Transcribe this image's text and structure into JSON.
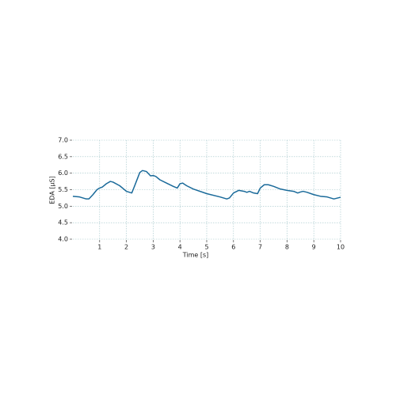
{
  "chart_data": {
    "type": "line",
    "xlabel": "Time [s]",
    "ylabel": "EDA [μS]",
    "x": [
      0,
      0.25,
      0.5,
      0.6,
      0.75,
      0.9,
      1.0,
      1.1,
      1.25,
      1.4,
      1.5,
      1.75,
      2.0,
      2.2,
      2.3,
      2.5,
      2.6,
      2.75,
      2.9,
      3.0,
      3.1,
      3.25,
      3.5,
      3.75,
      3.9,
      4.0,
      4.1,
      4.25,
      4.5,
      5.0,
      5.5,
      5.75,
      5.85,
      6.0,
      6.2,
      6.4,
      6.5,
      6.6,
      6.75,
      6.9,
      7.0,
      7.15,
      7.3,
      7.5,
      7.75,
      8.0,
      8.25,
      8.4,
      8.5,
      8.6,
      8.75,
      9.0,
      9.25,
      9.5,
      9.75,
      9.9,
      10
    ],
    "series": [
      {
        "name": "EDA",
        "color": "#1a6a9a",
        "values": [
          5.3,
          5.28,
          5.22,
          5.22,
          5.35,
          5.5,
          5.55,
          5.58,
          5.68,
          5.75,
          5.73,
          5.62,
          5.45,
          5.4,
          5.6,
          6.02,
          6.08,
          6.05,
          5.92,
          5.93,
          5.9,
          5.8,
          5.7,
          5.6,
          5.55,
          5.68,
          5.7,
          5.62,
          5.52,
          5.38,
          5.28,
          5.22,
          5.25,
          5.4,
          5.48,
          5.45,
          5.42,
          5.45,
          5.4,
          5.38,
          5.55,
          5.65,
          5.65,
          5.6,
          5.52,
          5.48,
          5.45,
          5.4,
          5.43,
          5.45,
          5.42,
          5.35,
          5.3,
          5.28,
          5.22,
          5.25,
          5.27
        ]
      }
    ],
    "xlim": [
      0,
      10
    ],
    "xticks": [
      1,
      2,
      3,
      4,
      5,
      6,
      7,
      8,
      9,
      10
    ],
    "ylim": [
      4.0,
      7.0
    ],
    "yticks": [
      {
        "value": 4.0,
        "label": "4.0"
      },
      4.5,
      {
        "value": 5.0,
        "label": "5.0"
      },
      5.5,
      {
        "value": 6.0,
        "label": "6.0"
      },
      6.5,
      {
        "value": 7.0,
        "label": "7.0"
      }
    ],
    "grid": true
  }
}
